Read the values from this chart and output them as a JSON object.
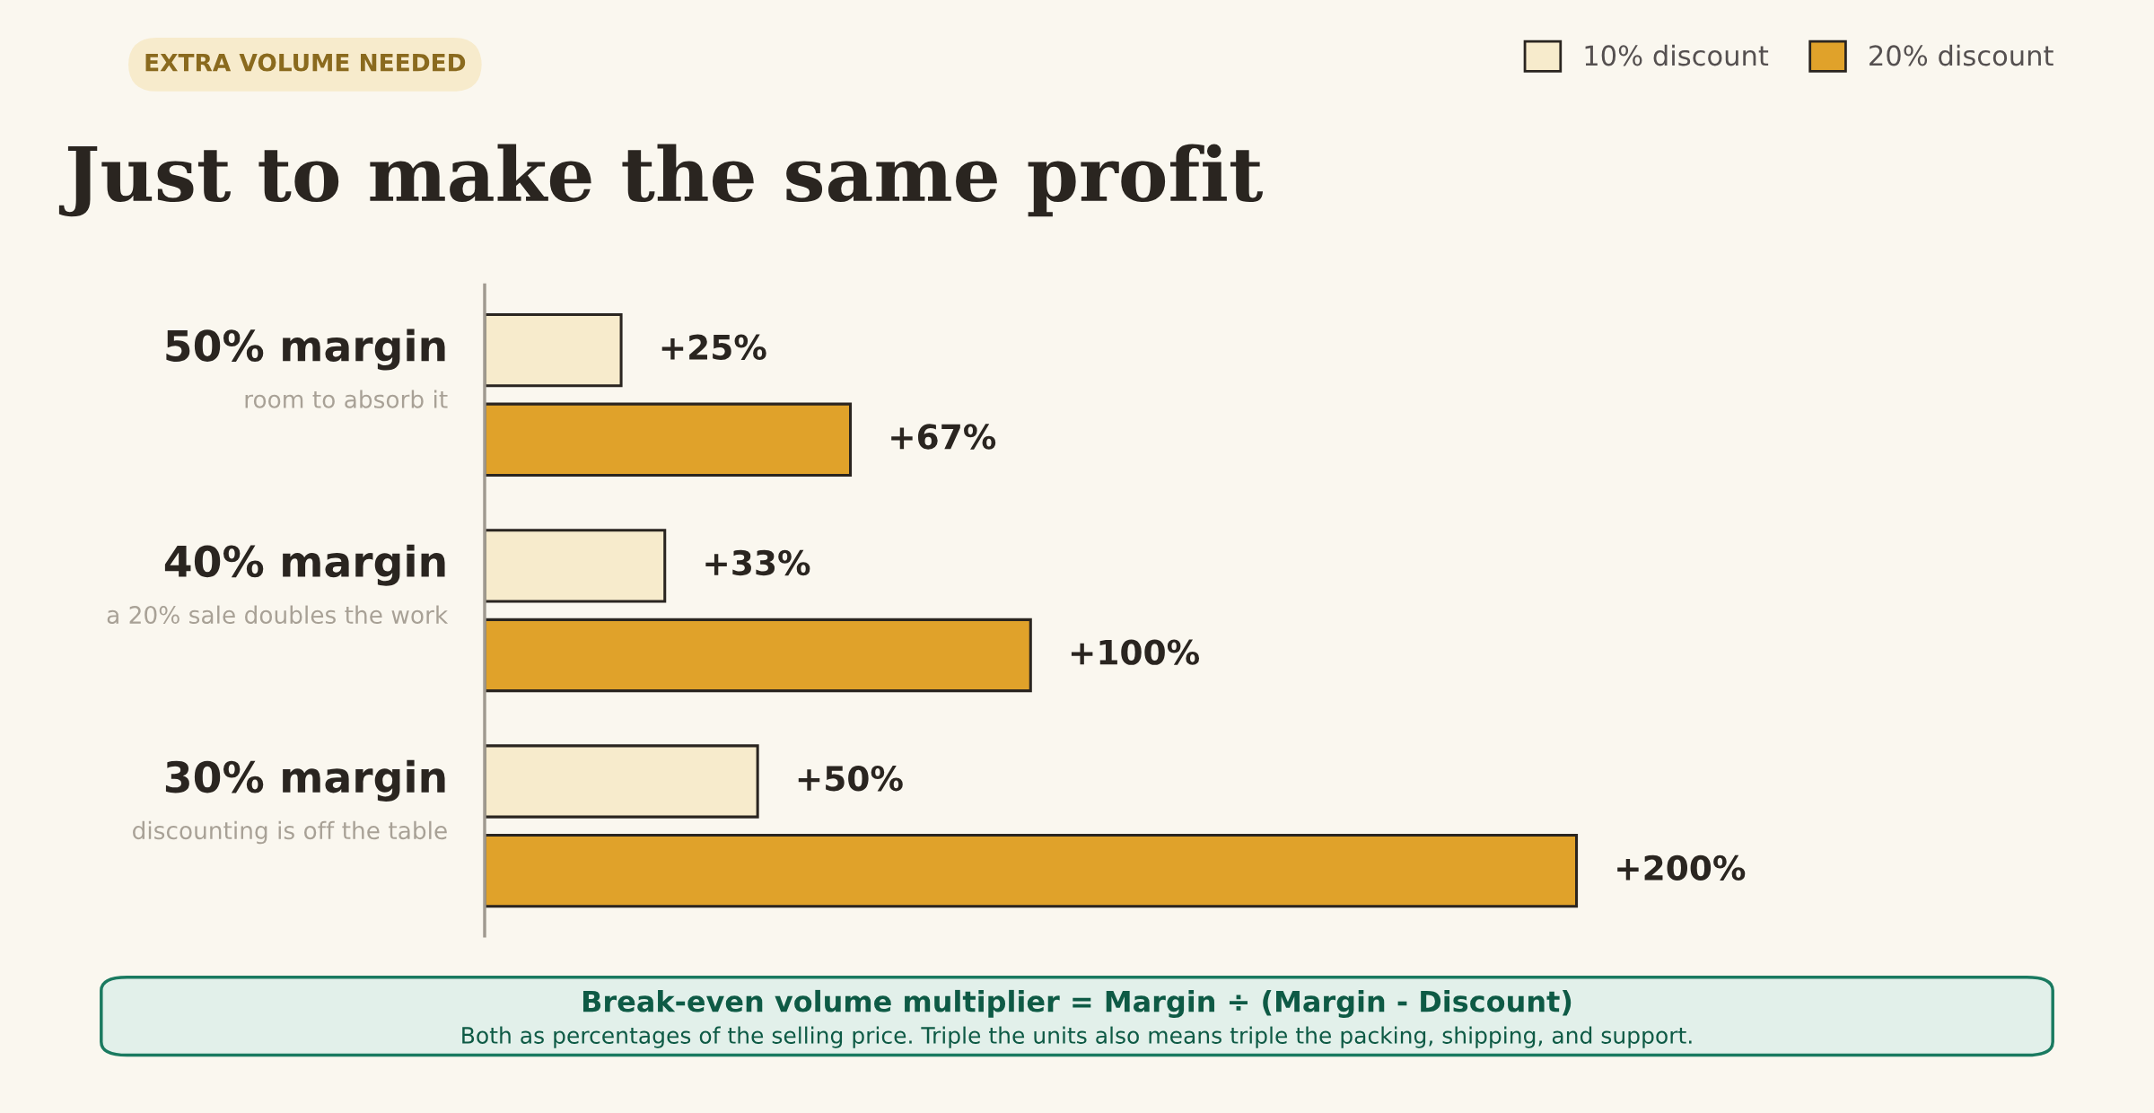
{
  "chart_data": {
    "type": "bar",
    "orientation": "horizontal",
    "title": "Just to make the same profit",
    "subtitle": "EXTRA VOLUME NEEDED",
    "categories": [
      "50% margin",
      "40% margin",
      "30% margin"
    ],
    "series": [
      {
        "name": "10% discount",
        "color": "#f7ebcc",
        "values": [
          25,
          33,
          50
        ],
        "value_labels": [
          "+25%",
          "+33%",
          "+50%"
        ]
      },
      {
        "name": "20% discount",
        "color": "#e0a22a",
        "values": [
          67,
          100,
          200
        ],
        "value_labels": [
          "+67%",
          "+100%",
          "+200%"
        ]
      }
    ],
    "legend": "top right",
    "annotations": [
      "room to absorb it",
      "a 20% sale doubles the work",
      "discounting is off the table",
      "Break-even volume multiplier = Margin ÷ (Margin - Discount)",
      "Both as percentages of the selling price. Triple the units also means triple the packing, shipping, and support."
    ]
  }
}
